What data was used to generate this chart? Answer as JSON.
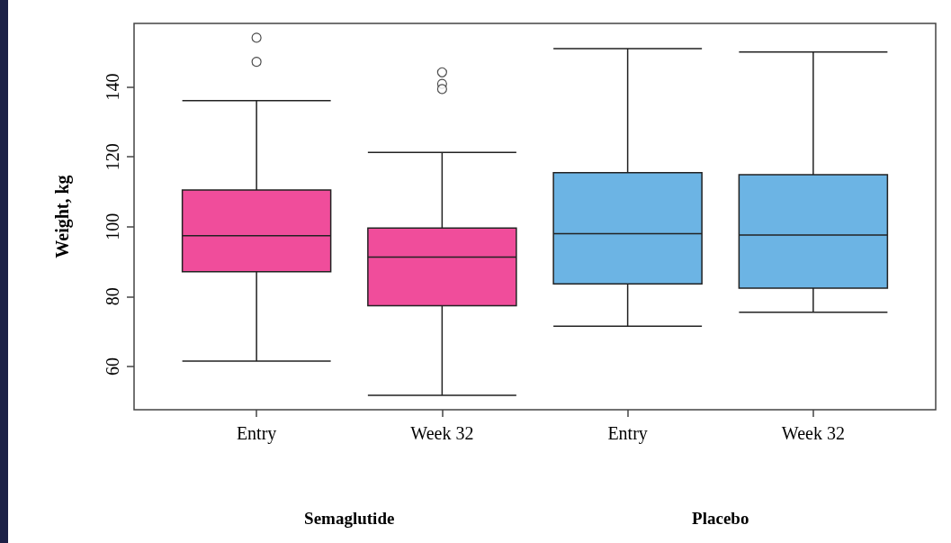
{
  "chart_data": {
    "type": "box",
    "ylabel": "Weight, kg",
    "categories": [
      "Entry",
      "Week 32",
      "Entry",
      "Week 32"
    ],
    "colors": [
      "#f04d9b",
      "#f04d9b",
      "#6cb4e4",
      "#6cb4e4"
    ],
    "boxes": [
      {
        "low": 61.5,
        "q1": 87.1,
        "median": 97.4,
        "q3": 110.5,
        "high": 136.1,
        "outliers": [
          154.1,
          147.2
        ]
      },
      {
        "low": 51.7,
        "q1": 77.4,
        "median": 91.3,
        "q3": 99.6,
        "high": 121.3,
        "outliers": [
          144.2,
          140.9,
          139.4
        ]
      },
      {
        "low": 71.5,
        "q1": 83.6,
        "median": 98.0,
        "q3": 115.5,
        "high": 151.0
      },
      {
        "low": 75.5,
        "q1": 82.4,
        "median": 97.6,
        "q3": 114.9,
        "high": 150.0
      }
    ],
    "ylim": [
      47.6,
      158.2
    ],
    "yticks": [
      60,
      80,
      100,
      120,
      140
    ],
    "annotations": [
      "Semaglutide",
      "Placebo"
    ]
  }
}
